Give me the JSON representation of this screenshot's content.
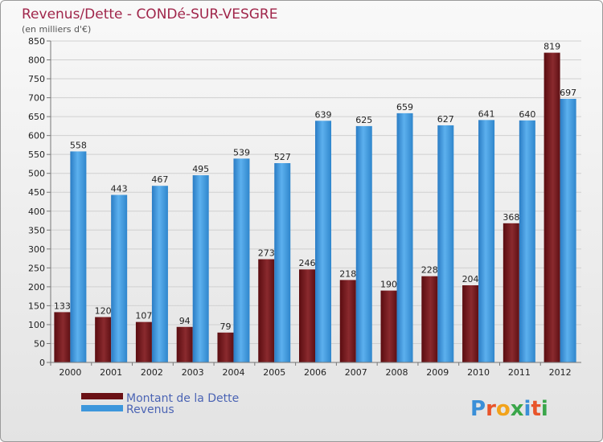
{
  "chart_data": {
    "type": "bar",
    "title": "Revenus/Dette - CONDé-SUR-VESGRE",
    "subtitle": "(en milliers d'€)",
    "categories": [
      "2000",
      "2001",
      "2002",
      "2003",
      "2004",
      "2005",
      "2006",
      "2007",
      "2008",
      "2009",
      "2010",
      "2011",
      "2012"
    ],
    "series": [
      {
        "name": "Montant de la Dette",
        "color": "#7a1a1f",
        "values": [
          133,
          120,
          107,
          94,
          79,
          273,
          246,
          218,
          190,
          228,
          204,
          368,
          819
        ]
      },
      {
        "name": "Revenus",
        "color": "#3d97dc",
        "values": [
          558,
          443,
          467,
          495,
          539,
          527,
          639,
          625,
          659,
          627,
          641,
          640,
          697
        ]
      }
    ],
    "ylim": [
      0,
      850
    ],
    "yticks": [
      0,
      50,
      100,
      150,
      200,
      250,
      300,
      350,
      400,
      450,
      500,
      550,
      600,
      650,
      700,
      750,
      800,
      850
    ],
    "grid": true,
    "legend_position": "bottom-left"
  },
  "logo": {
    "text": "Proxiti",
    "letter_colors": [
      "#3a8fd8",
      "#e8542a",
      "#f2a31b",
      "#3aa64a",
      "#3a8fd8",
      "#e8542a",
      "#3aa64a"
    ]
  }
}
